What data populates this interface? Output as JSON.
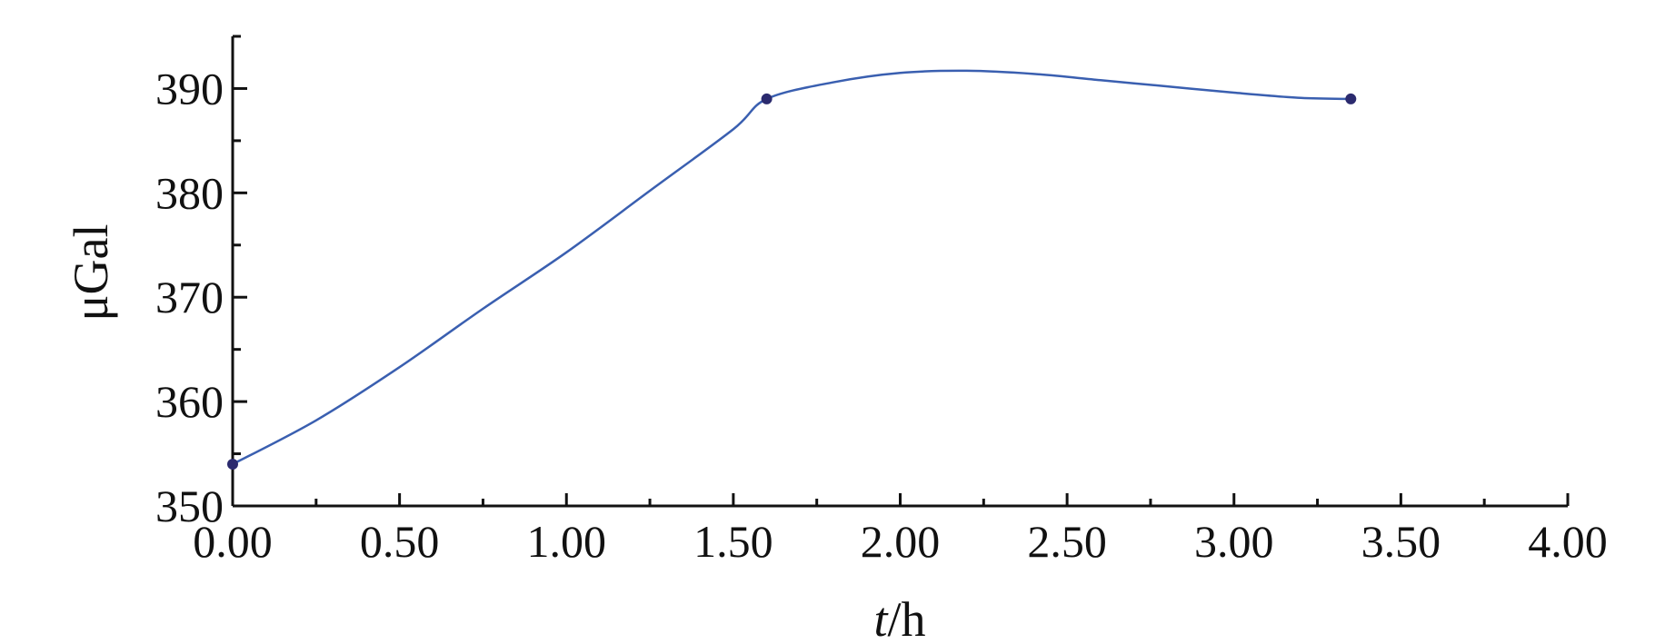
{
  "chart_data": {
    "type": "line",
    "title": "",
    "xlabel": {
      "italic": "t",
      "rest": "/h"
    },
    "ylabel": "μGal",
    "xlim": [
      0,
      4
    ],
    "ylim": [
      350,
      395
    ],
    "x_ticks": [
      "0.00",
      "0.50",
      "1.00",
      "1.50",
      "2.00",
      "2.50",
      "3.00",
      "3.50",
      "4.00"
    ],
    "y_ticks": [
      "350",
      "360",
      "370",
      "380",
      "390"
    ],
    "grid": false,
    "legend": "none",
    "colors": {
      "line": "#3a5fb0",
      "marker": "#2b2a6e",
      "axis": "#111111"
    },
    "series": [
      {
        "markers": [
          {
            "x": 0.0,
            "y": 354.0
          },
          {
            "x": 1.6,
            "y": 389.0
          },
          {
            "x": 3.35,
            "y": 389.0
          }
        ],
        "curve": [
          {
            "x": 0.0,
            "y": 354.0
          },
          {
            "x": 0.25,
            "y": 358.2
          },
          {
            "x": 0.5,
            "y": 363.3
          },
          {
            "x": 0.75,
            "y": 368.9
          },
          {
            "x": 1.0,
            "y": 374.3
          },
          {
            "x": 1.25,
            "y": 380.2
          },
          {
            "x": 1.5,
            "y": 386.1
          },
          {
            "x": 1.6,
            "y": 389.0
          },
          {
            "x": 1.8,
            "y": 390.6
          },
          {
            "x": 2.0,
            "y": 391.5
          },
          {
            "x": 2.2,
            "y": 391.7
          },
          {
            "x": 2.4,
            "y": 391.4
          },
          {
            "x": 2.6,
            "y": 390.8
          },
          {
            "x": 2.8,
            "y": 390.2
          },
          {
            "x": 3.0,
            "y": 389.6
          },
          {
            "x": 3.2,
            "y": 389.1
          },
          {
            "x": 3.35,
            "y": 389.0
          }
        ]
      }
    ]
  }
}
